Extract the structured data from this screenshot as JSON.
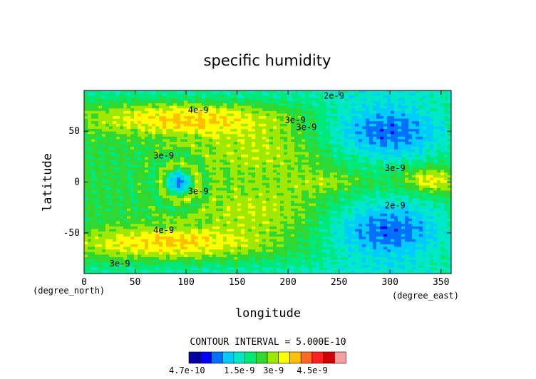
{
  "chart_data": {
    "type": "heatmap",
    "title": "specific humidity",
    "xlabel": "longitude",
    "ylabel": "latitude",
    "x_unit_label": "(degree_east)",
    "y_unit_label": "(degree_north)",
    "xlim": [
      0,
      360
    ],
    "ylim": [
      -90,
      90
    ],
    "x_ticks": [
      0,
      50,
      100,
      150,
      200,
      250,
      300,
      350
    ],
    "y_ticks": [
      -50,
      0,
      50
    ],
    "contour_interval_text": "CONTOUR INTERVAL = 5.000E-10",
    "levels_labels": [
      "4.7e-10",
      "1.5e-9",
      "3e-9",
      "4.5e-9"
    ],
    "colorbar_colors": [
      "#0000a0",
      "#0000ff",
      "#0070ff",
      "#00ccff",
      "#00e8c8",
      "#00e878",
      "#30d830",
      "#a0e800",
      "#ffff00",
      "#ffc000",
      "#ff6a20",
      "#ff2020",
      "#d00000",
      "#f4a0a0"
    ],
    "contour_labels": [
      {
        "text": "2e-9",
        "lon": 245,
        "lat": 82
      },
      {
        "text": "4e-9",
        "lon": 112,
        "lat": 68
      },
      {
        "text": "3e-9",
        "lon": 207,
        "lat": 58
      },
      {
        "text": "3e-9",
        "lon": 218,
        "lat": 51
      },
      {
        "text": "3e-9",
        "lon": 78,
        "lat": 23
      },
      {
        "text": "3e-9",
        "lon": 305,
        "lat": 11
      },
      {
        "text": "3e-9",
        "lon": 112,
        "lat": -12
      },
      {
        "text": "2e-9",
        "lon": 305,
        "lat": -26
      },
      {
        "text": "4e-9",
        "lon": 78,
        "lat": -50
      },
      {
        "text": "3e-9",
        "lon": 35,
        "lat": -83
      }
    ],
    "features": [
      {
        "kind": "dry",
        "lon": 298,
        "lat": 50,
        "level": 1.0
      },
      {
        "kind": "dry",
        "lon": 298,
        "lat": -48,
        "level": 1.0
      },
      {
        "kind": "moist",
        "lon": 85,
        "lat": 58,
        "level": 4.6
      },
      {
        "kind": "moist",
        "lon": 75,
        "lat": -58,
        "level": 4.6
      },
      {
        "kind": "moist",
        "lon": 340,
        "lat": 2,
        "level": 4.3
      },
      {
        "kind": "vortex",
        "lon": 93,
        "lat": 0,
        "level": 0.47
      }
    ]
  }
}
